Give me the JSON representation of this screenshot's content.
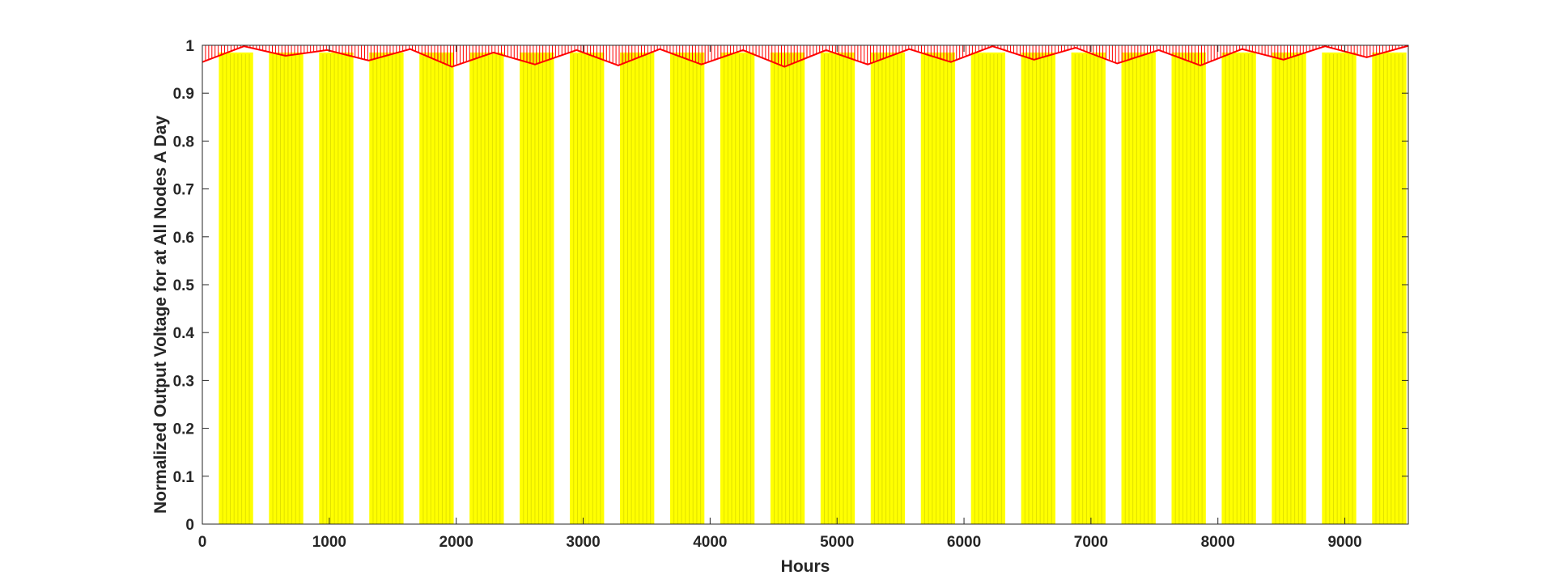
{
  "chart_data": {
    "type": "bar",
    "title": "",
    "xlabel": "Hours",
    "ylabel": "Normalized Output Voltage for  at All Nodes  A Day",
    "xlim": [
      0,
      9500
    ],
    "ylim": [
      0,
      1
    ],
    "xticks": [
      "0",
      "1000",
      "2000",
      "3000",
      "4000",
      "5000",
      "6000",
      "7000",
      "8000",
      "9000"
    ],
    "yticks": [
      "0",
      "0.1",
      "0.2",
      "0.3",
      "0.4",
      "0.5",
      "0.6",
      "0.7",
      "0.8",
      "0.9",
      "1"
    ],
    "grid": false,
    "legend": "none",
    "colors": {
      "bars": "#ffff00",
      "voltage": "#ff0000",
      "axis": "#262626",
      "background": "#ffffff"
    },
    "series": [
      {
        "type": "bar",
        "period_hours": 396,
        "active_start_hours": [
          130,
          525,
          920,
          1315,
          1710,
          2105,
          2500,
          2895,
          3290,
          3685,
          4080,
          4475,
          4870,
          5265,
          5660,
          6055,
          6450,
          6845,
          7240,
          7635,
          8030,
          8425,
          8820,
          9215
        ],
        "active_length_hours": 270,
        "value": 0.985
      },
      {
        "type": "line",
        "values": [
          0.965,
          0.998,
          0.978,
          0.99,
          0.968,
          0.992,
          0.955,
          0.985,
          0.96,
          0.99,
          0.958,
          0.992,
          0.96,
          0.99,
          0.955,
          0.99,
          0.96,
          0.992,
          0.965,
          0.998,
          0.97,
          0.995,
          0.962,
          0.99,
          0.958,
          0.992,
          0.97,
          0.998,
          0.975,
          0.999
        ],
        "x_start": 0,
        "x_end": 9500
      }
    ]
  }
}
